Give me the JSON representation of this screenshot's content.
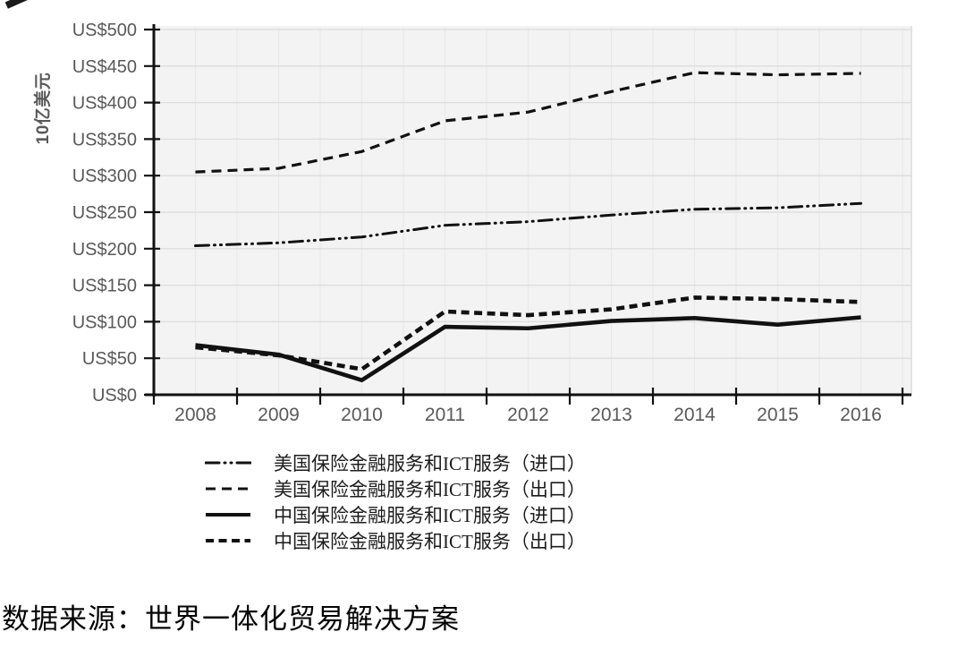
{
  "page": {
    "caption": "数据来源：世界一体化贸易解决方案"
  },
  "chart_data": {
    "type": "line",
    "title": "",
    "xlabel": "",
    "ylabel": "10亿美元",
    "y_tick_prefix": "US$",
    "y_ticks": [
      0,
      50,
      100,
      150,
      200,
      250,
      300,
      350,
      400,
      450,
      500
    ],
    "ylim": [
      0,
      500
    ],
    "grid": "horizontal major gridlines + light vertical half-step gridlines",
    "legend_position": "bottom-left",
    "categories": [
      "2008",
      "2009",
      "2010",
      "2011",
      "2012",
      "2013",
      "2014",
      "2015",
      "2016"
    ],
    "series": [
      {
        "name": "美国保险金融服务和ICT服务（进口）",
        "values": [
          204,
          208,
          216,
          232,
          237,
          246,
          254,
          256,
          262
        ],
        "line": "dash-dot-dot",
        "width": 3
      },
      {
        "name": "美国保险金融服务和ICT服务（出口）",
        "values": [
          305,
          310,
          333,
          375,
          387,
          415,
          441,
          438,
          440
        ],
        "line": "dashed",
        "width": 3.2
      },
      {
        "name": "中国保险金融服务和ICT服务（进口）",
        "values": [
          68,
          55,
          20,
          93,
          91,
          101,
          105,
          96,
          106
        ],
        "line": "solid",
        "width": 4.6
      },
      {
        "name": "中国保险金融服务和ICT服务（出口）",
        "values": [
          65,
          54,
          35,
          114,
          109,
          117,
          133,
          131,
          127
        ],
        "line": "short-dash",
        "width": 4.6
      }
    ],
    "colors": {
      "line": "#111111",
      "plot_bg": "#f3f3f3",
      "grid_major": "#dcdcdc",
      "grid_minor": "#e9e9e9",
      "plot_border": "#d9d9d9",
      "tick_label": "#595959"
    }
  }
}
